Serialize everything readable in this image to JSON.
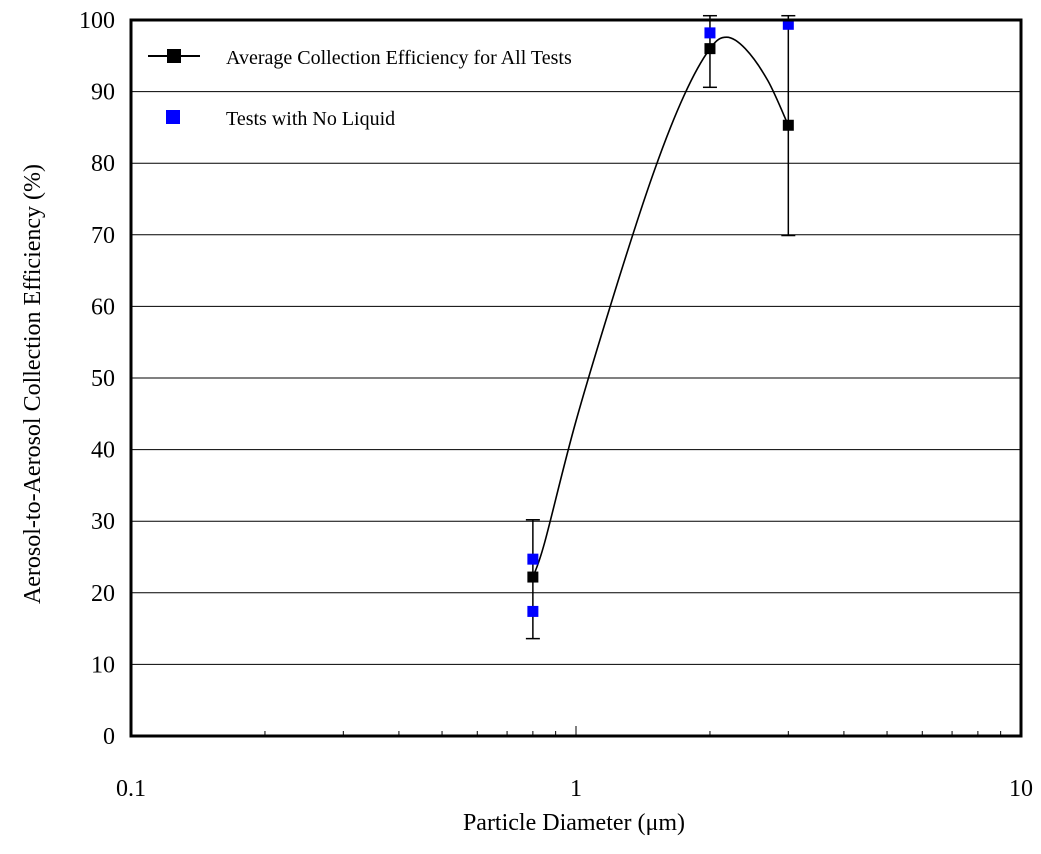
{
  "chart_data": {
    "type": "scatter",
    "xlabel": "Particle Diameter (μm)",
    "ylabel": "Aerosol-to-Aerosol Collection Efficiency (%)",
    "xscale": "log",
    "xlim": [
      0.1,
      10
    ],
    "ylim": [
      0,
      100
    ],
    "x_ticks": [
      0.1,
      1,
      10
    ],
    "x_tick_labels": [
      "0.1",
      "1",
      "10"
    ],
    "y_ticks": [
      0,
      10,
      20,
      30,
      40,
      50,
      60,
      70,
      80,
      90,
      100
    ],
    "y_tick_labels": [
      "0",
      "10",
      "20",
      "30",
      "40",
      "50",
      "60",
      "70",
      "80",
      "90",
      "100"
    ],
    "grid": "horizontal",
    "legend_position": "top-left",
    "series": [
      {
        "name": "Average Collection Efficiency for All Tests",
        "color": "#000000",
        "marker": "square",
        "smooth_line": true,
        "points": [
          {
            "x": 0.8,
            "y": 22.2,
            "err_low": 13.6,
            "err_high": 30.2
          },
          {
            "x": 2.0,
            "y": 96.0,
            "err_low": 90.6,
            "err_high": 100.6
          },
          {
            "x": 3.0,
            "y": 85.3,
            "err_low": 69.9,
            "err_high": 100.6
          }
        ]
      },
      {
        "name": "Tests with No Liquid",
        "color": "#0000ff",
        "marker": "square",
        "smooth_line": false,
        "points": [
          {
            "x": 0.8,
            "y": 24.7
          },
          {
            "x": 0.8,
            "y": 17.4
          },
          {
            "x": 2.0,
            "y": 98.2
          },
          {
            "x": 3.0,
            "y": 99.4
          }
        ]
      }
    ],
    "fit_curve": [
      {
        "x": 0.8,
        "y": 22.2
      },
      {
        "x": 0.85,
        "y": 27.0
      },
      {
        "x": 1.0,
        "y": 44.0
      },
      {
        "x": 1.25,
        "y": 64.0
      },
      {
        "x": 1.5,
        "y": 79.0
      },
      {
        "x": 1.75,
        "y": 89.5
      },
      {
        "x": 2.0,
        "y": 96.0
      },
      {
        "x": 2.18,
        "y": 97.6
      },
      {
        "x": 2.4,
        "y": 96.0
      },
      {
        "x": 2.7,
        "y": 91.5
      },
      {
        "x": 3.0,
        "y": 85.3
      }
    ]
  }
}
